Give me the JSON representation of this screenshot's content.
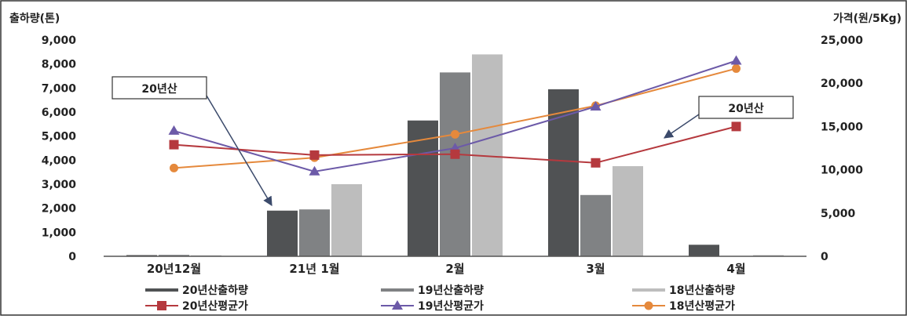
{
  "chart_data": {
    "type": "bar+line",
    "y_left_label": "출하량(톤)",
    "y_right_label": "가격(원/5Kg)",
    "categories": [
      "20년12월",
      "21년 1월",
      "2월",
      "3월",
      "4월"
    ],
    "y_left_ticks": [
      "0",
      "1,000",
      "2,000",
      "3,000",
      "4,000",
      "5,000",
      "6,000",
      "7,000",
      "8,000",
      "9,000"
    ],
    "y_right_ticks": [
      "0",
      "5,000",
      "10,000",
      "15,000",
      "20,000",
      "25,000"
    ],
    "ylim_left": [
      0,
      9000
    ],
    "ylim_right": [
      0,
      25000
    ],
    "bar_series": [
      {
        "name": "20년산출하량",
        "color": "#505254",
        "values": [
          50,
          1900,
          5650,
          6950,
          480
        ]
      },
      {
        "name": "19년산출하량",
        "color": "#808284",
        "values": [
          60,
          1950,
          7650,
          2550,
          0
        ]
      },
      {
        "name": "18년산출하량",
        "color": "#bdbdbd",
        "values": [
          40,
          3000,
          8400,
          3750,
          50
        ]
      }
    ],
    "line_series": [
      {
        "name": "20년산평균가",
        "color": "#b5393e",
        "marker": "square",
        "values": [
          12900,
          11700,
          11800,
          10800,
          15000
        ]
      },
      {
        "name": "19년산평균가",
        "color": "#6c5aa8",
        "marker": "triangle",
        "values": [
          14500,
          9800,
          12500,
          17300,
          22600
        ]
      },
      {
        "name": "18년산평균가",
        "color": "#e5893c",
        "marker": "circle",
        "values": [
          10200,
          11400,
          14100,
          17400,
          21700
        ]
      }
    ],
    "annotations": [
      {
        "text": "20년산"
      },
      {
        "text": "20년산"
      }
    ],
    "grid": false,
    "legend_placement": "bottom"
  }
}
